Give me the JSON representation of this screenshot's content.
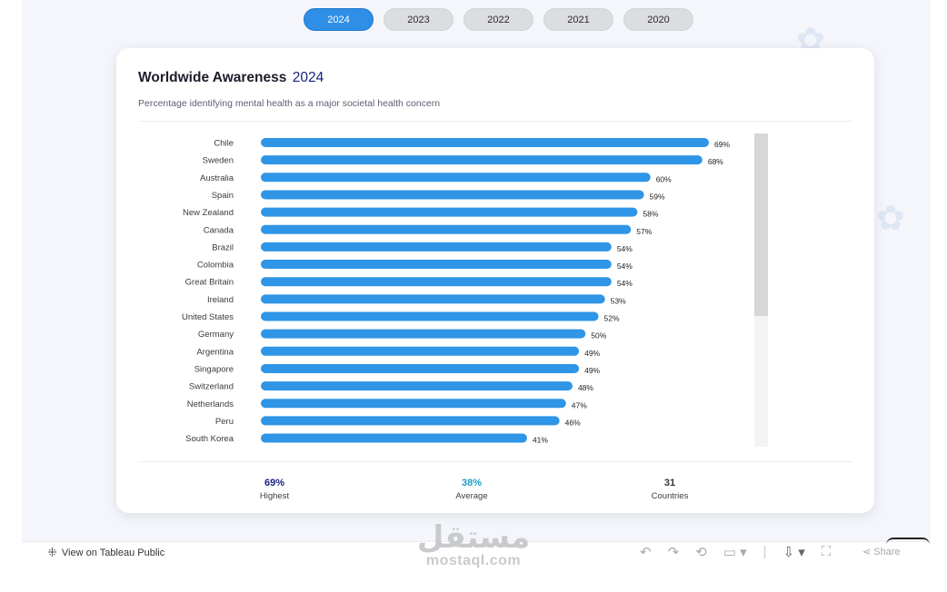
{
  "years": [
    "2024",
    "2023",
    "2022",
    "2021",
    "2020"
  ],
  "selected_year": "2024",
  "card": {
    "title": "Worldwide Awareness",
    "title_year": "2024",
    "subtitle": "Percentage identifying mental health as a major societal health concern"
  },
  "chart_data": {
    "type": "bar",
    "orientation": "horizontal",
    "title": "Worldwide Awareness 2024",
    "subtitle": "Percentage identifying mental health as a major societal health concern",
    "categories": [
      "Chile",
      "Sweden",
      "Australia",
      "Spain",
      "New Zealand",
      "Canada",
      "Brazil",
      "Colombia",
      "Great Britain",
      "Ireland",
      "United States",
      "Germany",
      "Argentina",
      "Singapore",
      "Switzerland",
      "Netherlands",
      "Peru",
      "South Korea"
    ],
    "values": [
      69,
      68,
      60,
      59,
      58,
      57,
      54,
      54,
      54,
      53,
      52,
      50,
      49,
      49,
      48,
      47,
      46,
      41
    ],
    "labels": [
      "69%",
      "68%",
      "60%",
      "59%",
      "58%",
      "57%",
      "54%",
      "54%",
      "54%",
      "53%",
      "52%",
      "50%",
      "49%",
      "49%",
      "48%",
      "47%",
      "46%",
      "41%"
    ],
    "xlim": [
      0,
      69
    ],
    "xlabel": "",
    "ylabel": "",
    "bar_color": "#2f95e6"
  },
  "stats": {
    "highest": {
      "value": "69%",
      "label": "Highest",
      "color": "#1a237e"
    },
    "average": {
      "value": "38%",
      "label": "Average",
      "color": "#1fa0c8"
    },
    "countries": {
      "value": "31",
      "label": "Countries",
      "color": "#333333"
    }
  },
  "toolbar": {
    "view_label": "View on Tableau Public",
    "share_label": "Share"
  },
  "watermark": {
    "arabic": "مستقل",
    "latin": "mostaql.com"
  }
}
